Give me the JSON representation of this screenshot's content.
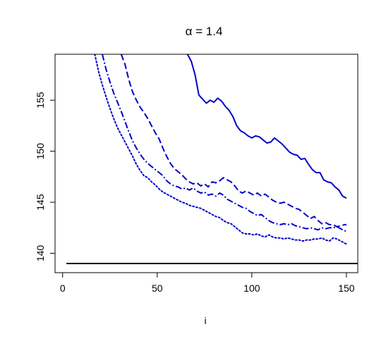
{
  "chart_data": {
    "type": "line",
    "title": "α = 1.4",
    "xlabel": "i",
    "ylabel": "",
    "xlim": [
      -4,
      156
    ],
    "ylim": [
      138.1,
      159.5
    ],
    "xticks": [
      "0",
      "50",
      "100",
      "150"
    ],
    "yticks": [
      "140",
      "145",
      "150",
      "155"
    ],
    "grid": false,
    "legend": "none",
    "series": [
      {
        "style": "solid",
        "color": "#0000cc",
        "x": [
          66,
          68,
          70,
          72,
          74,
          76,
          78,
          80,
          82,
          84,
          86,
          88,
          90,
          92,
          94,
          96,
          98,
          100,
          102,
          104,
          106,
          108,
          110,
          112,
          114,
          116,
          118,
          120,
          122,
          124,
          126,
          128,
          130,
          132,
          134,
          136,
          138,
          140,
          142,
          144,
          146,
          148,
          150
        ],
        "y": [
          159.5,
          158.8,
          157.5,
          155.5,
          155.1,
          154.7,
          155.0,
          154.8,
          155.2,
          154.9,
          154.4,
          154.0,
          153.4,
          152.5,
          152.0,
          151.8,
          151.5,
          151.3,
          151.5,
          151.4,
          151.1,
          150.8,
          150.9,
          151.3,
          151.0,
          150.7,
          150.3,
          149.9,
          149.7,
          149.6,
          149.2,
          149.3,
          148.7,
          148.2,
          147.9,
          147.9,
          147.2,
          147.0,
          146.9,
          146.5,
          146.2,
          145.6,
          145.4
        ]
      },
      {
        "style": "dashed",
        "color": "#0000cc",
        "x": [
          31,
          33,
          35,
          37,
          39,
          41,
          43,
          45,
          47,
          49,
          51,
          53,
          55,
          57,
          59,
          61,
          63,
          65,
          67,
          69,
          71,
          73,
          75,
          77,
          79,
          81,
          83,
          85,
          87,
          89,
          91,
          93,
          95,
          97,
          99,
          101,
          103,
          105,
          107,
          109,
          111,
          113,
          115,
          117,
          119,
          121,
          123,
          125,
          127,
          129,
          131,
          133,
          135,
          137,
          139,
          141,
          143,
          145,
          147,
          149,
          150
        ],
        "y": [
          159.5,
          158.5,
          157.0,
          155.8,
          155.0,
          154.3,
          153.8,
          153.2,
          152.5,
          151.8,
          151.2,
          150.3,
          149.5,
          148.8,
          148.3,
          148.0,
          147.7,
          147.3,
          147.0,
          146.8,
          146.9,
          146.6,
          146.8,
          146.5,
          147.0,
          146.9,
          147.1,
          147.4,
          147.2,
          147.0,
          146.6,
          146.1,
          145.9,
          146.1,
          145.9,
          145.7,
          145.9,
          145.6,
          145.8,
          145.5,
          145.2,
          145.0,
          144.9,
          145.0,
          144.8,
          144.6,
          144.4,
          144.3,
          144.0,
          143.7,
          143.4,
          143.6,
          143.2,
          142.9,
          143.0,
          142.8,
          142.8,
          142.6,
          142.7,
          142.8,
          142.8
        ]
      },
      {
        "style": "dashdot",
        "color": "#0000cc",
        "x": [
          21,
          23,
          25,
          27,
          29,
          31,
          33,
          35,
          37,
          39,
          41,
          43,
          45,
          47,
          49,
          51,
          53,
          55,
          57,
          59,
          61,
          63,
          65,
          67,
          69,
          71,
          73,
          75,
          77,
          79,
          81,
          83,
          85,
          87,
          89,
          91,
          93,
          95,
          97,
          99,
          101,
          103,
          105,
          107,
          109,
          111,
          113,
          115,
          117,
          119,
          121,
          123,
          125,
          127,
          129,
          131,
          133,
          135,
          137,
          139,
          141,
          143,
          145,
          147,
          149,
          150
        ],
        "y": [
          159.5,
          158.0,
          156.8,
          155.7,
          154.8,
          153.9,
          152.9,
          151.9,
          151.0,
          150.3,
          149.7,
          149.2,
          148.8,
          148.5,
          148.2,
          147.9,
          147.6,
          147.1,
          146.8,
          146.6,
          146.5,
          146.3,
          146.4,
          146.2,
          146.4,
          146.1,
          145.9,
          146.0,
          145.7,
          145.8,
          145.6,
          145.9,
          145.7,
          145.3,
          145.1,
          144.9,
          144.7,
          144.5,
          144.4,
          144.1,
          143.9,
          143.7,
          143.8,
          143.5,
          143.2,
          143.0,
          142.9,
          142.8,
          142.9,
          142.8,
          142.9,
          142.7,
          142.6,
          142.5,
          142.4,
          142.5,
          142.4,
          142.3,
          142.5,
          142.4,
          142.5,
          142.5,
          142.6,
          142.4,
          142.2,
          142.2
        ]
      },
      {
        "style": "dotted",
        "color": "#0000cc",
        "x": [
          17,
          19,
          21,
          23,
          25,
          27,
          29,
          31,
          33,
          35,
          37,
          39,
          41,
          43,
          45,
          47,
          49,
          51,
          53,
          55,
          57,
          59,
          61,
          63,
          65,
          67,
          69,
          71,
          73,
          75,
          77,
          79,
          81,
          83,
          85,
          87,
          89,
          91,
          93,
          95,
          97,
          99,
          101,
          103,
          105,
          107,
          109,
          111,
          113,
          115,
          117,
          119,
          121,
          123,
          125,
          127,
          129,
          131,
          133,
          135,
          137,
          139,
          141,
          143,
          145,
          147,
          149,
          150
        ],
        "y": [
          159.5,
          157.8,
          156.5,
          155.3,
          154.2,
          153.2,
          152.3,
          151.6,
          150.9,
          150.2,
          149.5,
          148.7,
          148.1,
          147.6,
          147.4,
          147.0,
          146.7,
          146.3,
          146.0,
          145.8,
          145.6,
          145.4,
          145.2,
          145.0,
          144.9,
          144.7,
          144.6,
          144.5,
          144.4,
          144.2,
          144.0,
          143.8,
          143.6,
          143.5,
          143.2,
          143.0,
          142.9,
          142.6,
          142.3,
          142.0,
          141.9,
          141.9,
          141.8,
          141.9,
          141.7,
          141.6,
          141.8,
          141.6,
          141.5,
          141.5,
          141.4,
          141.5,
          141.4,
          141.3,
          141.3,
          141.2,
          141.3,
          141.3,
          141.4,
          141.4,
          141.5,
          141.3,
          141.2,
          141.5,
          141.4,
          141.2,
          141.0,
          140.9
        ]
      },
      {
        "style": "solid",
        "color": "#000000",
        "x": [
          2,
          156
        ],
        "y": [
          139.0,
          139.0
        ]
      }
    ]
  }
}
